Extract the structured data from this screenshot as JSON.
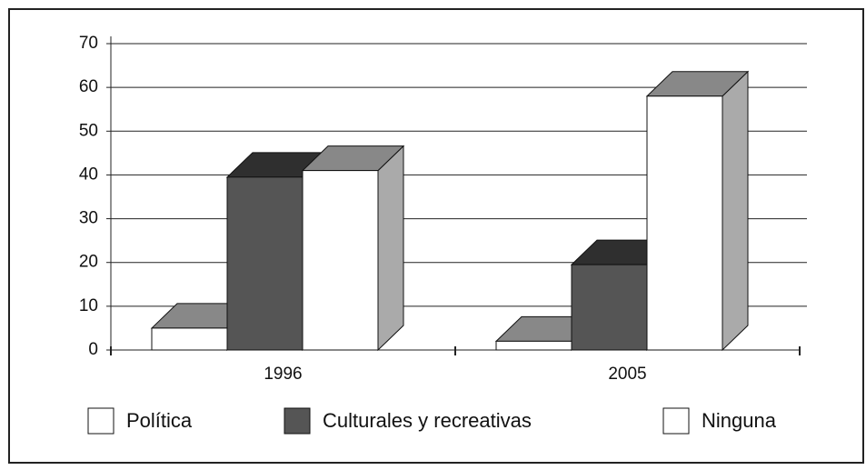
{
  "chart_data": {
    "type": "bar3d",
    "categories": [
      "1996",
      "2005"
    ],
    "series": [
      {
        "name": "Política",
        "color": "#ffffff",
        "values": [
          5,
          2
        ]
      },
      {
        "name": "Culturales y recreativas",
        "color": "#555555",
        "values": [
          39.5,
          19.5
        ]
      },
      {
        "name": "Ninguna",
        "color": "#ffffff",
        "values": [
          41,
          58
        ]
      }
    ],
    "ylim": [
      0,
      70
    ],
    "yticks": [
      0,
      10,
      20,
      30,
      40,
      50,
      60,
      70
    ],
    "grid": true,
    "legend": "bottom"
  }
}
